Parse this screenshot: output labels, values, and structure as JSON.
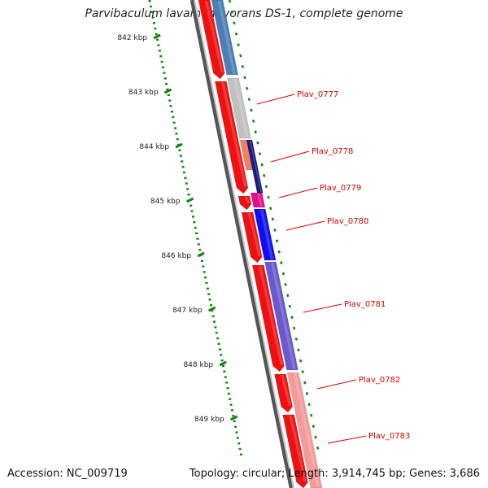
{
  "title": "Parvibaculum lavamentivorans DS-1, complete genome",
  "footer": {
    "accession": "Accession: NC_009719",
    "summary": "Topology: circular; Length: 3,914,745 bp; Genes: 3,686"
  },
  "scale": {
    "labels": [
      "842 kbp",
      "843 kbp",
      "844 kbp",
      "845 kbp",
      "846 kbp",
      "847 kbp",
      "848 kbp",
      "849 kbp"
    ]
  },
  "gene_labels": [
    "Plav_0777",
    "Plav_0778",
    "Plav_0779",
    "Plav_0780",
    "Plav_0781",
    "Plav_0782",
    "Plav_0783"
  ],
  "colors": {
    "reverse_strand": "#ee1111",
    "tick": "#118811",
    "label": "#dd0000",
    "backbone": "#777777",
    "steelblue": "#4a7fb5",
    "gray": "#c0c0c0",
    "salmon": "#f08060",
    "navy": "#1a1a80",
    "magenta": "#e0108a",
    "blue": "#1010ee",
    "slateblue": "#6a5acd",
    "pink": "#f59a9a"
  }
}
